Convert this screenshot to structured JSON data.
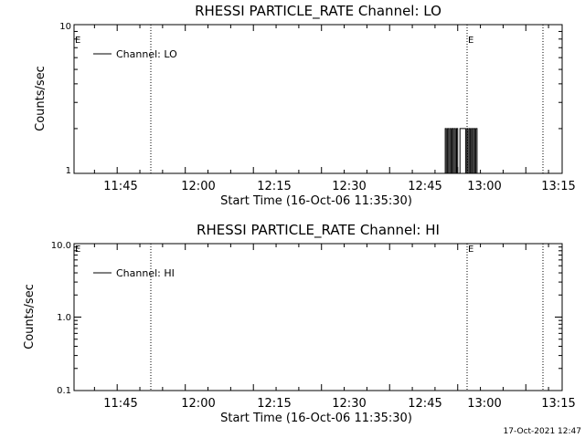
{
  "chart_data": [
    {
      "type": "line",
      "title": "RHESSI PARTICLE_RATE Channel: LO",
      "xlabel": "Start Time (16-Oct-06 11:35:30)",
      "ylabel": "Counts/sec",
      "y_scale": "log",
      "ylim": [
        1,
        10
      ],
      "y_ticks": [
        "1",
        "10"
      ],
      "x_ticks": [
        "11:45",
        "12:00",
        "12:15",
        "12:30",
        "12:45",
        "13:00",
        "13:15"
      ],
      "markers": [
        {
          "label": "E",
          "time": "11:35:30"
        },
        {
          "label": "E",
          "time": "12:58:00"
        }
      ],
      "vlines": [
        "11:51:30",
        "12:58:00",
        "13:13:00"
      ],
      "legend": "Channel: LO",
      "series": [
        {
          "name": "Channel: LO",
          "x": [
            "12:57:00",
            "12:57:15",
            "12:57:30",
            "12:57:45",
            "12:58:00",
            "12:58:15",
            "12:58:30",
            "12:58:45",
            "12:59:00",
            "12:59:15",
            "12:59:30",
            "12:59:45",
            "13:00:00",
            "13:00:15",
            "13:00:30",
            "13:00:45",
            "13:01:00",
            "13:01:15",
            "13:01:30",
            "13:01:45",
            "13:02:00",
            "13:02:15",
            "13:02:30",
            "13:02:45",
            "13:03:00",
            "13:03:15",
            "13:03:30",
            "13:03:45",
            "13:04:00",
            "13:04:15",
            "13:04:30"
          ],
          "values": [
            1,
            2,
            1,
            2,
            1,
            2,
            1,
            2,
            1,
            2,
            1,
            2,
            1,
            1,
            2,
            2,
            2,
            2,
            2,
            1,
            2,
            1,
            2,
            1,
            2,
            1,
            2,
            1,
            2,
            1,
            1
          ]
        }
      ]
    },
    {
      "type": "line",
      "title": "RHESSI PARTICLE_RATE Channel: HI",
      "xlabel": "Start Time (16-Oct-06 11:35:30)",
      "ylabel": "Counts/sec",
      "y_scale": "log",
      "ylim": [
        0.1,
        10
      ],
      "y_ticks": [
        "0.1",
        "1.0",
        "10.0"
      ],
      "x_ticks": [
        "11:45",
        "12:00",
        "12:15",
        "12:30",
        "12:45",
        "13:00",
        "13:15"
      ],
      "markers": [
        {
          "label": "E",
          "time": "11:35:30"
        },
        {
          "label": "E",
          "time": "12:58:00"
        }
      ],
      "vlines": [
        "11:51:30",
        "12:58:00",
        "13:13:00"
      ],
      "legend": "Channel: HI",
      "series": [
        {
          "name": "Channel: HI",
          "x": [],
          "values": []
        }
      ]
    }
  ],
  "footer": {
    "timestamp": "17-Oct-2021 12:47"
  }
}
